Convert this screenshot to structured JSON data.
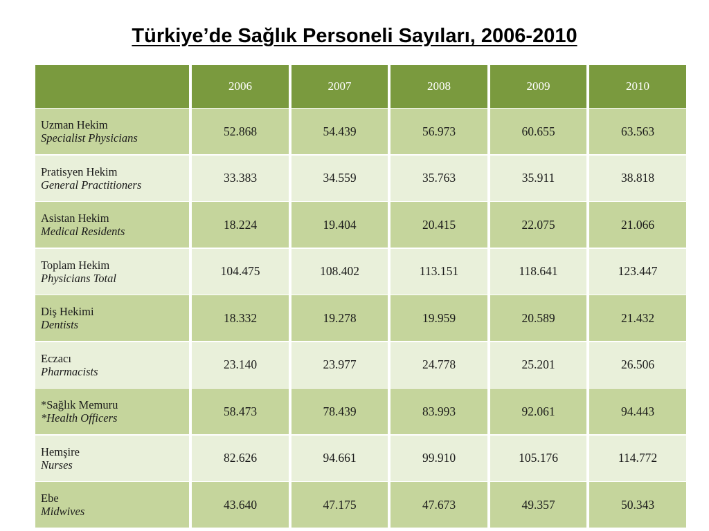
{
  "title": "Türkiye’de Sağlık Personeli Sayıları, 2006-2010",
  "table": {
    "corner": "",
    "years": [
      "2006",
      "2007",
      "2008",
      "2009",
      "2010"
    ],
    "rows": [
      {
        "tr": "Uzman Hekim",
        "en": "Specialist Physicians",
        "values": [
          "52.868",
          "54.439",
          "56.973",
          "60.655",
          "63.563"
        ]
      },
      {
        "tr": "Pratisyen Hekim",
        "en": "General Practitioners",
        "values": [
          "33.383",
          "34.559",
          "35.763",
          "35.911",
          "38.818"
        ]
      },
      {
        "tr": "Asistan Hekim",
        "en": "Medical Residents",
        "values": [
          "18.224",
          "19.404",
          "20.415",
          "22.075",
          "21.066"
        ]
      },
      {
        "tr": "Toplam Hekim",
        "en": "Physicians Total",
        "values": [
          "104.475",
          "108.402",
          "113.151",
          "118.641",
          "123.447"
        ]
      },
      {
        "tr": "Diş Hekimi",
        "en": "Dentists",
        "values": [
          "18.332",
          "19.278",
          "19.959",
          "20.589",
          "21.432"
        ]
      },
      {
        "tr": "Eczacı",
        "en": "Pharmacists",
        "values": [
          "23.140",
          "23.977",
          "24.778",
          "25.201",
          "26.506"
        ]
      },
      {
        "tr": "*Sağlık Memuru",
        "en": "*Health Officers",
        "values": [
          "58.473",
          "78.439",
          "83.993",
          "92.061",
          "94.443"
        ]
      },
      {
        "tr": "Hemşire",
        "en": "Nurses",
        "values": [
          "82.626",
          "94.661",
          "99.910",
          "105.176",
          "114.772"
        ]
      },
      {
        "tr": "Ebe",
        "en": "Midwives",
        "values": [
          "43.640",
          "47.175",
          "47.673",
          "49.357",
          "50.343"
        ]
      }
    ]
  },
  "colors": {
    "header": "#7a9a3e",
    "row_dark": "#c5d59c",
    "row_light": "#e9f0da"
  }
}
